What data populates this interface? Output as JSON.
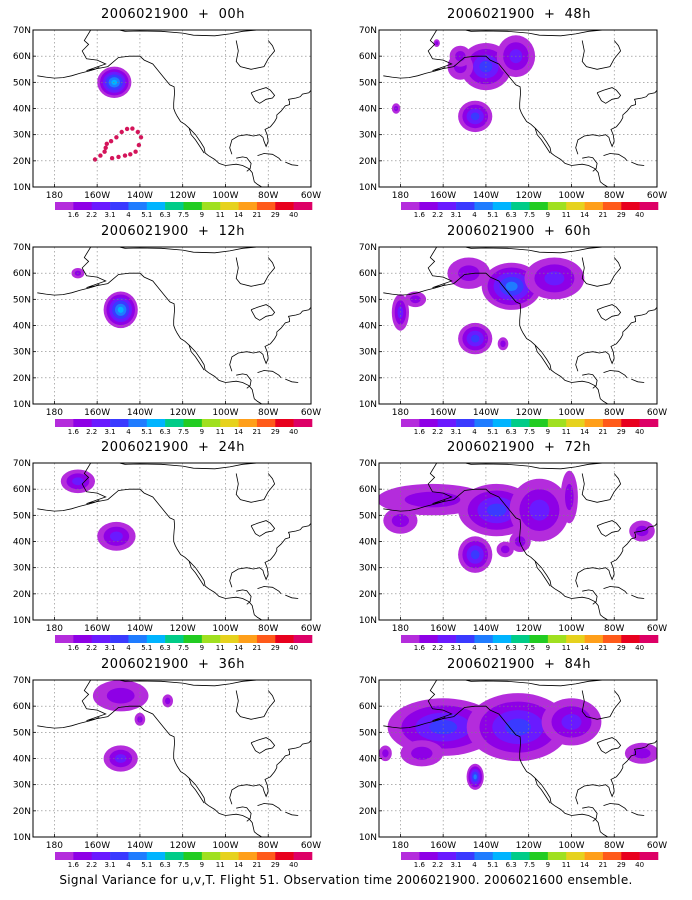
{
  "figure": {
    "caption": "Signal Variance for u,v,T. Flight 51. Observation time 2006021900. 2006021600 ensemble."
  },
  "map_extent": {
    "lon_min": 170,
    "lon_max": 300,
    "lat_min": 10,
    "lat_max": 70
  },
  "axes": {
    "y_ticks": [
      "10N",
      "20N",
      "30N",
      "40N",
      "50N",
      "60N",
      "70N"
    ],
    "x_ticks": [
      "180",
      "160W",
      "140W",
      "120W",
      "100W",
      "80W",
      "60W"
    ]
  },
  "color_scale": {
    "labels": [
      "1.6",
      "2.2",
      "3.1",
      "4",
      "5.1",
      "6.3",
      "7.5",
      "9",
      "11",
      "14",
      "21",
      "29",
      "40"
    ],
    "colors": [
      "#b42cdc",
      "#8e00e6",
      "#6a1aff",
      "#3a3aff",
      "#1f7cff",
      "#00b4ff",
      "#00cc88",
      "#22cc22",
      "#a0e020",
      "#e6d21e",
      "#ff9f1a",
      "#ff5a1a",
      "#e8001e",
      "#dd0066"
    ]
  },
  "panels": [
    {
      "title": "2006021900 + 00h",
      "blobs": [
        {
          "lon": 208,
          "lat": 50,
          "rlon": 8,
          "rlat": 6,
          "peak": 5
        }
      ],
      "dots": [
        [
          207,
          21
        ],
        [
          210,
          21.5
        ],
        [
          213,
          22
        ],
        [
          215.5,
          22.5
        ],
        [
          218,
          23.5
        ],
        [
          219.5,
          26
        ],
        [
          220.5,
          29
        ],
        [
          219,
          31
        ],
        [
          216.5,
          32.3
        ],
        [
          214,
          32.2
        ],
        [
          211.5,
          31
        ],
        [
          209,
          29
        ],
        [
          206.5,
          27.5
        ],
        [
          204,
          25
        ],
        [
          203.5,
          23.5
        ],
        [
          201.5,
          22
        ],
        [
          199,
          20.5
        ],
        [
          204.5,
          26.5
        ]
      ]
    },
    {
      "title": "2006021900 + 48h",
      "blobs": [
        {
          "lon": 220,
          "lat": 56,
          "rlon": 12,
          "rlat": 9,
          "peak": 3
        },
        {
          "lon": 234,
          "lat": 60,
          "rlon": 9,
          "rlat": 8,
          "peak": 2
        },
        {
          "lon": 208,
          "lat": 56,
          "rlon": 6,
          "rlat": 5,
          "peak": 1
        },
        {
          "lon": 215,
          "lat": 37,
          "rlon": 8,
          "rlat": 6,
          "peak": 3
        },
        {
          "lon": 208,
          "lat": 60,
          "rlon": 5,
          "rlat": 4,
          "peak": 1
        },
        {
          "lon": 178,
          "lat": 40,
          "rlon": 2,
          "rlat": 2,
          "peak": 1
        },
        {
          "lon": 197,
          "lat": 65,
          "rlon": 1.5,
          "rlat": 1.5,
          "peak": 1
        }
      ]
    },
    {
      "title": "2006021900 + 12h",
      "blobs": [
        {
          "lon": 211,
          "lat": 46,
          "rlon": 8,
          "rlat": 7,
          "peak": 5
        },
        {
          "lon": 191,
          "lat": 60,
          "rlon": 3,
          "rlat": 2,
          "peak": 1
        }
      ]
    },
    {
      "title": "2006021900 + 60h",
      "blobs": [
        {
          "lon": 232,
          "lat": 55,
          "rlon": 14,
          "rlat": 9,
          "peak": 4
        },
        {
          "lon": 252,
          "lat": 58,
          "rlon": 14,
          "rlat": 8,
          "peak": 2
        },
        {
          "lon": 212,
          "lat": 60,
          "rlon": 10,
          "rlat": 6,
          "peak": 1
        },
        {
          "lon": 180,
          "lat": 45,
          "rlon": 4,
          "rlat": 7,
          "peak": 2
        },
        {
          "lon": 187,
          "lat": 50,
          "rlon": 5,
          "rlat": 3,
          "peak": 1
        },
        {
          "lon": 215,
          "lat": 35,
          "rlon": 8,
          "rlat": 6,
          "peak": 3
        },
        {
          "lon": 228,
          "lat": 33,
          "rlon": 2.5,
          "rlat": 2.5,
          "peak": 1
        }
      ]
    },
    {
      "title": "2006021900 + 24h",
      "blobs": [
        {
          "lon": 191,
          "lat": 63,
          "rlon": 8,
          "rlat": 4.5,
          "peak": 2
        },
        {
          "lon": 209,
          "lat": 42,
          "rlon": 9,
          "rlat": 5.5,
          "peak": 2
        }
      ]
    },
    {
      "title": "2006021900 + 72h",
      "blobs": [
        {
          "lon": 195,
          "lat": 56,
          "rlon": 26,
          "rlat": 6,
          "peak": 1
        },
        {
          "lon": 225,
          "lat": 52,
          "rlon": 18,
          "rlat": 10,
          "peak": 3
        },
        {
          "lon": 245,
          "lat": 52,
          "rlon": 14,
          "rlat": 12,
          "peak": 2
        },
        {
          "lon": 180,
          "lat": 48,
          "rlon": 8,
          "rlat": 5,
          "peak": 1
        },
        {
          "lon": 215,
          "lat": 35,
          "rlon": 8,
          "rlat": 7,
          "peak": 3
        },
        {
          "lon": 229,
          "lat": 37,
          "rlon": 4,
          "rlat": 3,
          "peak": 1
        },
        {
          "lon": 236,
          "lat": 40,
          "rlon": 5,
          "rlat": 4,
          "peak": 1
        },
        {
          "lon": 259,
          "lat": 57,
          "rlon": 4,
          "rlat": 10,
          "peak": 1
        },
        {
          "lon": 293,
          "lat": 44,
          "rlon": 6,
          "rlat": 4,
          "peak": 1
        }
      ]
    },
    {
      "title": "2006021900 + 36h",
      "blobs": [
        {
          "lon": 211,
          "lat": 64,
          "rlon": 13,
          "rlat": 6,
          "peak": 1
        },
        {
          "lon": 211,
          "lat": 40,
          "rlon": 8,
          "rlat": 5,
          "peak": 2
        },
        {
          "lon": 220,
          "lat": 55,
          "rlon": 2.5,
          "rlat": 2.5,
          "peak": 1
        },
        {
          "lon": 233,
          "lat": 62,
          "rlon": 2.5,
          "rlat": 2.5,
          "peak": 1
        }
      ]
    },
    {
      "title": "2006021900 + 84h",
      "blobs": [
        {
          "lon": 200,
          "lat": 52,
          "rlon": 26,
          "rlat": 11,
          "peak": 3
        },
        {
          "lon": 235,
          "lat": 52,
          "rlon": 24,
          "rlat": 13,
          "peak": 3
        },
        {
          "lon": 260,
          "lat": 54,
          "rlon": 14,
          "rlat": 9,
          "peak": 2
        },
        {
          "lon": 190,
          "lat": 42,
          "rlon": 10,
          "rlat": 5,
          "peak": 1
        },
        {
          "lon": 215,
          "lat": 33,
          "rlon": 4,
          "rlat": 5,
          "peak": 4
        },
        {
          "lon": 293,
          "lat": 42,
          "rlon": 8,
          "rlat": 4,
          "peak": 1
        },
        {
          "lon": 173,
          "lat": 42,
          "rlon": 3,
          "rlat": 3,
          "peak": 1
        }
      ]
    }
  ]
}
